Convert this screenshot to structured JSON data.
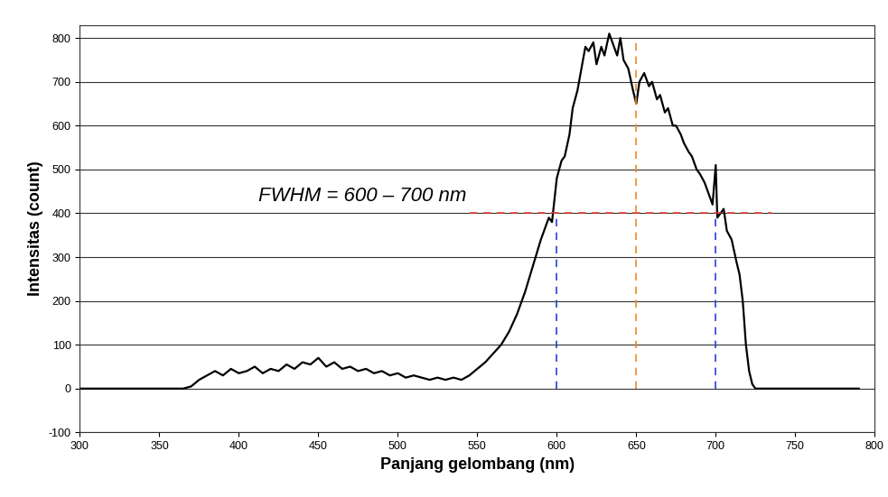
{
  "chart_data": {
    "type": "line",
    "x_label": "Panjang gelombang (nm)",
    "y_label": "Intensitas (count)",
    "annotation": "FWHM = 600 – 700 nm",
    "half_maximum": 400,
    "fwhm_bounds": [
      600,
      700
    ],
    "peak_center": 650,
    "color": "#000000",
    "grid": true,
    "xlim": [
      300,
      800
    ],
    "xticks": [
      300,
      350,
      400,
      450,
      500,
      550,
      600,
      650,
      700,
      750,
      800
    ],
    "ylim": [
      -100,
      830
    ],
    "yticks": [
      -100,
      0,
      100,
      200,
      300,
      400,
      500,
      600,
      700,
      800
    ],
    "x": [
      300,
      320,
      340,
      360,
      365,
      370,
      375,
      380,
      385,
      390,
      395,
      400,
      405,
      410,
      415,
      420,
      425,
      430,
      435,
      440,
      445,
      450,
      455,
      460,
      465,
      470,
      475,
      480,
      485,
      490,
      495,
      500,
      505,
      510,
      515,
      520,
      525,
      530,
      535,
      540,
      545,
      550,
      555,
      560,
      565,
      570,
      575,
      580,
      585,
      590,
      595,
      597,
      600,
      603,
      605,
      608,
      610,
      613,
      615,
      618,
      620,
      623,
      625,
      628,
      630,
      633,
      635,
      638,
      640,
      642,
      645,
      648,
      650,
      652,
      655,
      658,
      660,
      663,
      665,
      668,
      670,
      673,
      675,
      678,
      680,
      683,
      685,
      688,
      690,
      693,
      695,
      698,
      700,
      701,
      703,
      705,
      707,
      710,
      713,
      715,
      717,
      719,
      721,
      723,
      725,
      730,
      740,
      760,
      790
    ],
    "values": [
      0,
      0,
      0,
      0,
      0,
      5,
      20,
      30,
      40,
      30,
      45,
      35,
      40,
      50,
      35,
      45,
      40,
      55,
      45,
      60,
      55,
      70,
      50,
      60,
      45,
      50,
      40,
      45,
      35,
      40,
      30,
      35,
      25,
      30,
      25,
      20,
      25,
      20,
      25,
      20,
      30,
      45,
      60,
      80,
      100,
      130,
      170,
      220,
      280,
      340,
      390,
      380,
      480,
      520,
      530,
      580,
      640,
      680,
      720,
      780,
      770,
      790,
      740,
      780,
      760,
      810,
      790,
      760,
      800,
      750,
      730,
      680,
      650,
      700,
      720,
      690,
      700,
      660,
      670,
      630,
      640,
      600,
      600,
      580,
      560,
      540,
      530,
      500,
      490,
      470,
      450,
      420,
      510,
      390,
      400,
      410,
      360,
      340,
      290,
      260,
      200,
      100,
      40,
      10,
      0,
      0,
      0,
      0,
      0
    ]
  }
}
